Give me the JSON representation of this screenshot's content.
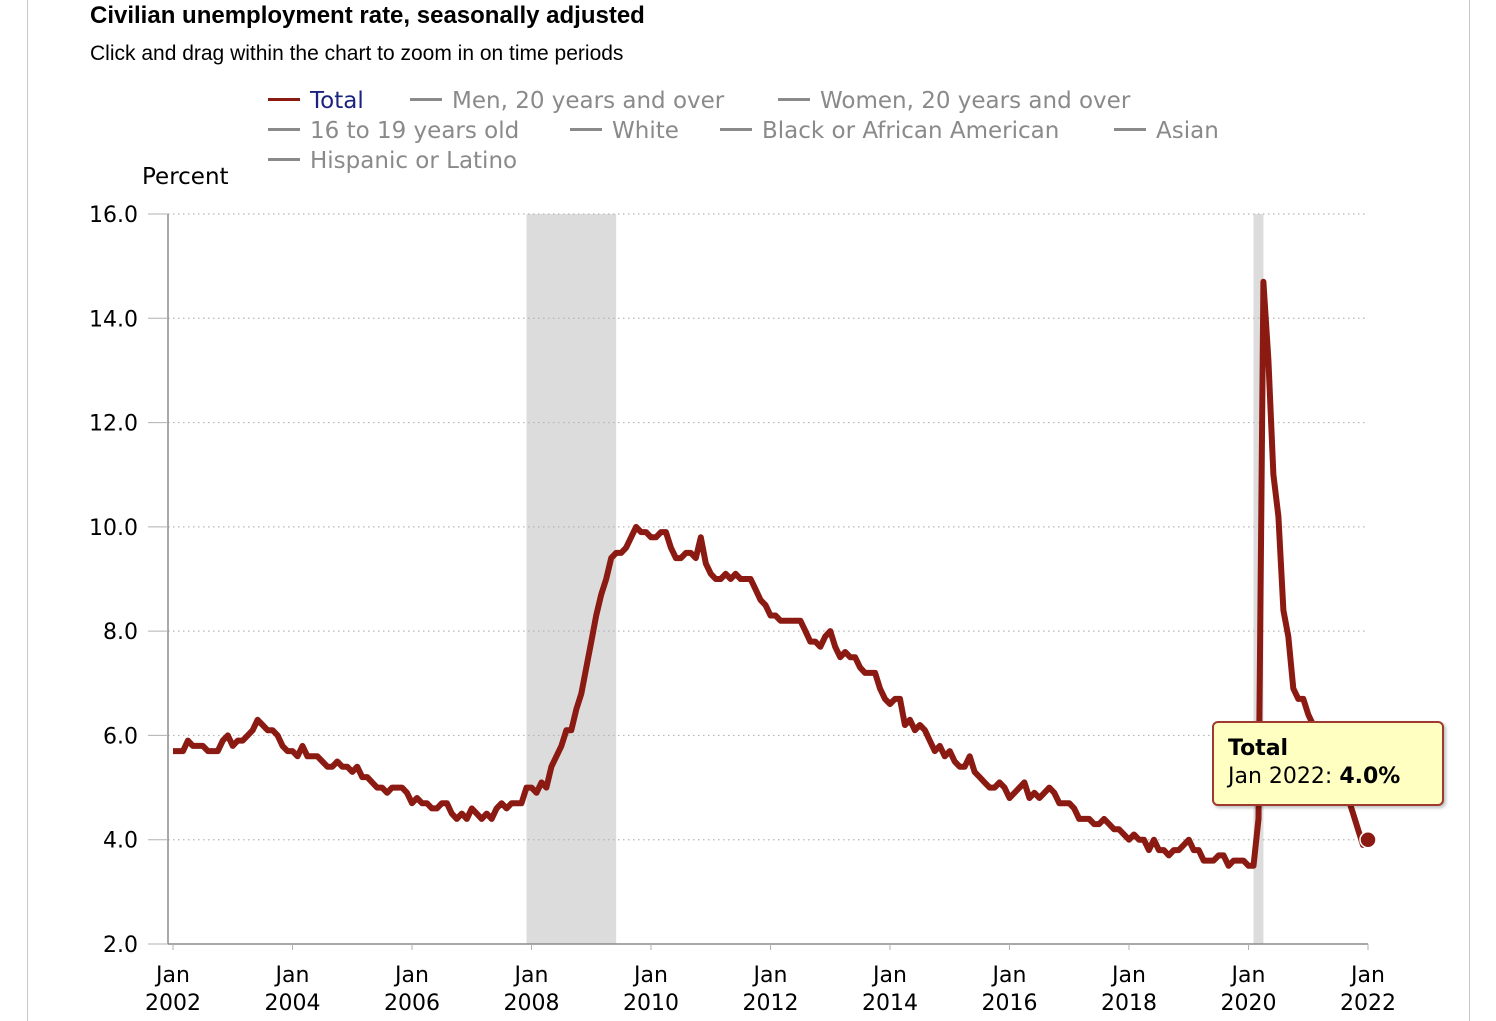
{
  "header": {
    "title": "Civilian unemployment rate, seasonally adjusted",
    "subtitle": "Click and drag within the chart to zoom in on time periods"
  },
  "legend": {
    "items": [
      {
        "label": "Total",
        "active": true
      },
      {
        "label": "Men, 20 years and over",
        "active": false
      },
      {
        "label": "Women, 20 years and over",
        "active": false
      },
      {
        "label": "16 to 19 years old",
        "active": false
      },
      {
        "label": "White",
        "active": false
      },
      {
        "label": "Black or African American",
        "active": false
      },
      {
        "label": "Asian",
        "active": false
      },
      {
        "label": "Hispanic or Latino",
        "active": false
      }
    ]
  },
  "tooltip": {
    "series": "Total",
    "date": "Jan 2022: ",
    "value": "4.0%"
  },
  "colors": {
    "series": "#8b1a12",
    "recession": "#dcdcdc",
    "inactive_legend": "#8a8a8a",
    "active_legend_text": "#1a237e",
    "tooltip_bg": "#ffffc2"
  },
  "chart_data": {
    "type": "line",
    "ylabel": "Percent",
    "ylim": [
      2.0,
      16.0
    ],
    "yticks": [
      "2.0",
      "4.0",
      "6.0",
      "8.0",
      "10.0",
      "12.0",
      "14.0",
      "16.0"
    ],
    "xticks": [
      [
        "Jan",
        "2002"
      ],
      [
        "Jan",
        "2004"
      ],
      [
        "Jan",
        "2006"
      ],
      [
        "Jan",
        "2008"
      ],
      [
        "Jan",
        "2010"
      ],
      [
        "Jan",
        "2012"
      ],
      [
        "Jan",
        "2014"
      ],
      [
        "Jan",
        "2016"
      ],
      [
        "Jan",
        "2018"
      ],
      [
        "Jan",
        "2020"
      ],
      [
        "Jan",
        "2022"
      ]
    ],
    "x_range": [
      "2002-01",
      "2022-01"
    ],
    "grid": "horizontal dotted",
    "recessions": [
      [
        "2007-12",
        "2009-06"
      ],
      [
        "2020-02",
        "2020-04"
      ]
    ],
    "series": [
      {
        "name": "Total",
        "start": "2002-01",
        "frequency": "monthly",
        "values": [
          5.7,
          5.7,
          5.7,
          5.9,
          5.8,
          5.8,
          5.8,
          5.7,
          5.7,
          5.7,
          5.9,
          6.0,
          5.8,
          5.9,
          5.9,
          6.0,
          6.1,
          6.3,
          6.2,
          6.1,
          6.1,
          6.0,
          5.8,
          5.7,
          5.7,
          5.6,
          5.8,
          5.6,
          5.6,
          5.6,
          5.5,
          5.4,
          5.4,
          5.5,
          5.4,
          5.4,
          5.3,
          5.4,
          5.2,
          5.2,
          5.1,
          5.0,
          5.0,
          4.9,
          5.0,
          5.0,
          5.0,
          4.9,
          4.7,
          4.8,
          4.7,
          4.7,
          4.6,
          4.6,
          4.7,
          4.7,
          4.5,
          4.4,
          4.5,
          4.4,
          4.6,
          4.5,
          4.4,
          4.5,
          4.4,
          4.6,
          4.7,
          4.6,
          4.7,
          4.7,
          4.7,
          5.0,
          5.0,
          4.9,
          5.1,
          5.0,
          5.4,
          5.6,
          5.8,
          6.1,
          6.1,
          6.5,
          6.8,
          7.3,
          7.8,
          8.3,
          8.7,
          9.0,
          9.4,
          9.5,
          9.5,
          9.6,
          9.8,
          10.0,
          9.9,
          9.9,
          9.8,
          9.8,
          9.9,
          9.9,
          9.6,
          9.4,
          9.4,
          9.5,
          9.5,
          9.4,
          9.8,
          9.3,
          9.1,
          9.0,
          9.0,
          9.1,
          9.0,
          9.1,
          9.0,
          9.0,
          9.0,
          8.8,
          8.6,
          8.5,
          8.3,
          8.3,
          8.2,
          8.2,
          8.2,
          8.2,
          8.2,
          8.0,
          7.8,
          7.8,
          7.7,
          7.9,
          8.0,
          7.7,
          7.5,
          7.6,
          7.5,
          7.5,
          7.3,
          7.2,
          7.2,
          7.2,
          6.9,
          6.7,
          6.6,
          6.7,
          6.7,
          6.2,
          6.3,
          6.1,
          6.2,
          6.1,
          5.9,
          5.7,
          5.8,
          5.6,
          5.7,
          5.5,
          5.4,
          5.4,
          5.6,
          5.3,
          5.2,
          5.1,
          5.0,
          5.0,
          5.1,
          5.0,
          4.8,
          4.9,
          5.0,
          5.1,
          4.8,
          4.9,
          4.8,
          4.9,
          5.0,
          4.9,
          4.7,
          4.7,
          4.7,
          4.6,
          4.4,
          4.4,
          4.4,
          4.3,
          4.3,
          4.4,
          4.3,
          4.2,
          4.2,
          4.1,
          4.0,
          4.1,
          4.0,
          4.0,
          3.8,
          4.0,
          3.8,
          3.8,
          3.7,
          3.8,
          3.8,
          3.9,
          4.0,
          3.8,
          3.8,
          3.6,
          3.6,
          3.6,
          3.7,
          3.7,
          3.5,
          3.6,
          3.6,
          3.6,
          3.5,
          3.5,
          4.4,
          14.7,
          13.2,
          11.0,
          10.2,
          8.4,
          7.9,
          6.9,
          6.7,
          6.7,
          6.4,
          6.2,
          6.0,
          6.1,
          5.8,
          5.9,
          5.4,
          5.2,
          4.8,
          4.5,
          4.2,
          3.9,
          4.0
        ]
      }
    ],
    "highlight": {
      "date": "Jan 2022",
      "value": 4.0
    }
  }
}
